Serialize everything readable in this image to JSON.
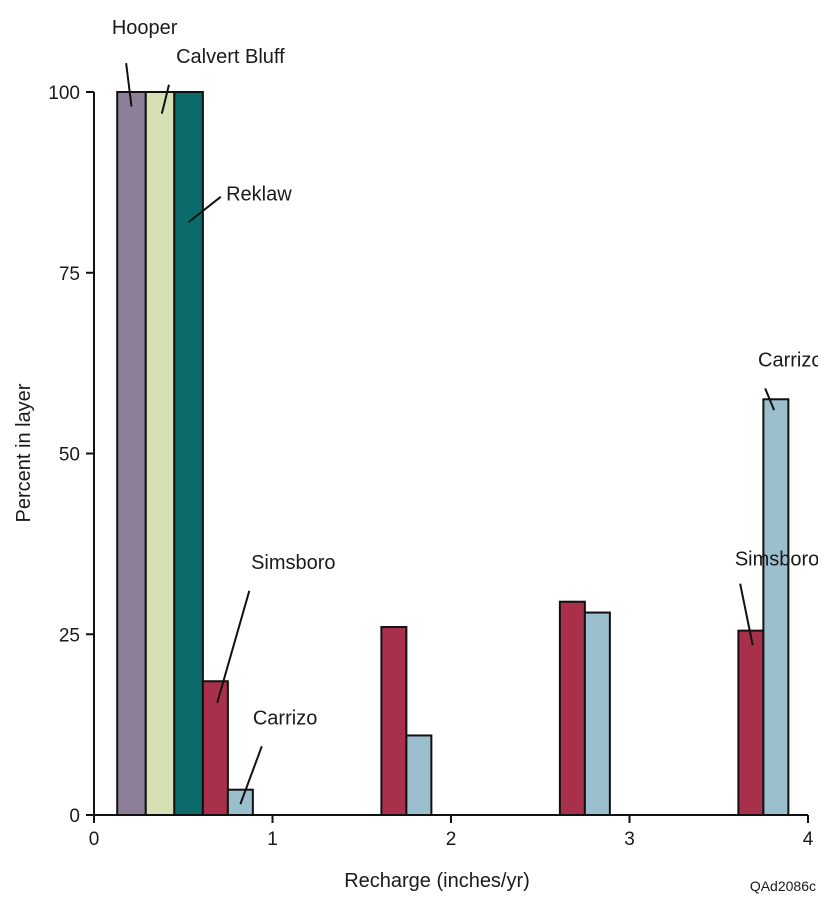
{
  "chart_data": {
    "type": "bar",
    "xlabel": "Recharge (inches/yr)",
    "ylabel": "Percent in layer",
    "xlim": [
      0,
      4
    ],
    "ylim": [
      0,
      100
    ],
    "x_ticks": [
      "0",
      "1",
      "2",
      "3",
      "4"
    ],
    "y_ticks": [
      "0",
      "25",
      "50",
      "75",
      "100"
    ],
    "grid": false,
    "bars": [
      {
        "layer": "Hooper",
        "x_start": 0.13,
        "x_end": 0.29,
        "value": 100,
        "color": "#8e7f99"
      },
      {
        "layer": "Calvert Bluff",
        "x_start": 0.29,
        "x_end": 0.45,
        "value": 100,
        "color": "#d7dfb5"
      },
      {
        "layer": "Reklaw",
        "x_start": 0.45,
        "x_end": 0.61,
        "value": 100,
        "color": "#0b6b6b"
      },
      {
        "layer": "Simsboro",
        "x_start": 0.61,
        "x_end": 0.75,
        "value": 18.5,
        "color": "#a8304a"
      },
      {
        "layer": "Carrizo",
        "x_start": 0.75,
        "x_end": 0.89,
        "value": 3.5,
        "color": "#9bbfcc"
      },
      {
        "layer": "Simsboro",
        "x_start": 1.61,
        "x_end": 1.75,
        "value": 26,
        "color": "#a8304a"
      },
      {
        "layer": "Carrizo",
        "x_start": 1.75,
        "x_end": 1.89,
        "value": 11,
        "color": "#9bbfcc"
      },
      {
        "layer": "Simsboro",
        "x_start": 2.61,
        "x_end": 2.75,
        "value": 29.5,
        "color": "#a8304a"
      },
      {
        "layer": "Carrizo",
        "x_start": 2.75,
        "x_end": 2.89,
        "value": 28,
        "color": "#9bbfcc"
      },
      {
        "layer": "Simsboro",
        "x_start": 3.61,
        "x_end": 3.75,
        "value": 25.5,
        "color": "#a8304a"
      },
      {
        "layer": "Carrizo",
        "x_start": 3.75,
        "x_end": 3.89,
        "value": 57.5,
        "color": "#9bbfcc"
      }
    ],
    "annotations": [
      {
        "text": "Hooper",
        "label_x": 0.1,
        "label_y": 108,
        "line_from": [
          0.18,
          104
        ],
        "line_to": [
          0.21,
          98
        ]
      },
      {
        "text": "Calvert Bluff",
        "label_x": 0.46,
        "label_y": 104,
        "line_from": [
          0.42,
          101
        ],
        "line_to": [
          0.38,
          97
        ]
      },
      {
        "text": "Reklaw",
        "label_x": 0.74,
        "label_y": 85,
        "line_from": [
          0.71,
          85.5
        ],
        "line_to": [
          0.53,
          82
        ]
      },
      {
        "text": "Simsboro",
        "label_x": 0.88,
        "label_y": 34,
        "line_from": [
          0.87,
          31
        ],
        "line_to": [
          0.69,
          15.5
        ]
      },
      {
        "text": "Carrizo",
        "label_x": 0.89,
        "label_y": 12.5,
        "line_from": [
          0.94,
          9.5
        ],
        "line_to": [
          0.82,
          1.5
        ]
      },
      {
        "text": "Simsboro",
        "label_x": 3.59,
        "label_y": 34.5,
        "line_from": [
          3.62,
          32
        ],
        "line_to": [
          3.69,
          23.5
        ]
      },
      {
        "text": "Carrizo",
        "label_x": 3.72,
        "label_y": 62,
        "line_from": [
          3.76,
          59
        ],
        "line_to": [
          3.81,
          56
        ]
      }
    ]
  },
  "figure_id": "QAd2086c"
}
